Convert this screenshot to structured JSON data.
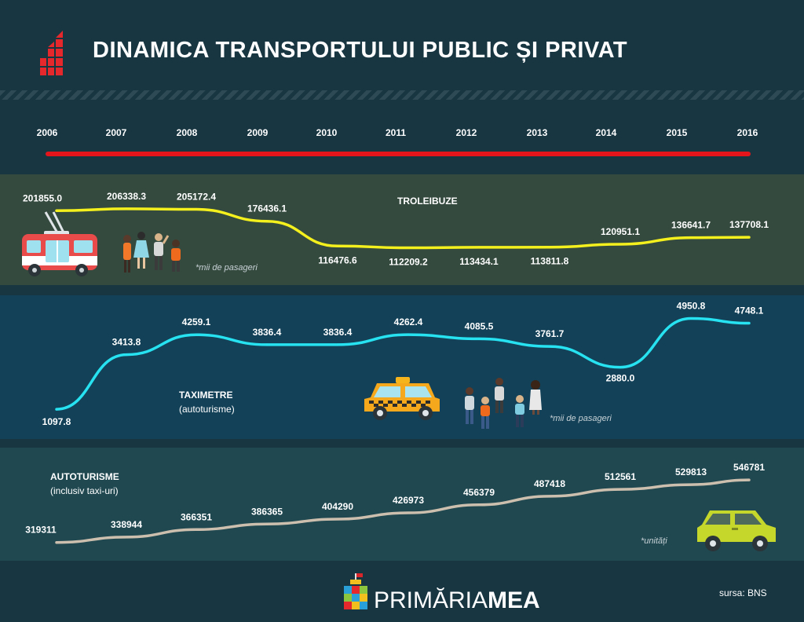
{
  "title": "DINAMICA TRANSPORTULUI PUBLIC ȘI PRIVAT",
  "years": [
    "2006",
    "2007",
    "2008",
    "2009",
    "2010",
    "2011",
    "2012",
    "2013",
    "2014",
    "2015",
    "2016"
  ],
  "colors": {
    "troleibuze": "#f4f01e",
    "taximetre": "#27e2f0",
    "autoturisme": "#cdbfae",
    "timeline": "#e4161b"
  },
  "chart_data": [
    {
      "type": "line",
      "x": [
        "2006",
        "2007",
        "2008",
        "2009",
        "2010",
        "2011",
        "2012",
        "2013",
        "2014",
        "2015",
        "2016"
      ],
      "series": [
        {
          "name": "TROLEIBUZE",
          "values": [
            201855.0,
            206338.3,
            205172.4,
            176436.1,
            116476.6,
            112209.2,
            113434.1,
            113811.8,
            120951.1,
            136641.7,
            137708.1
          ]
        }
      ],
      "labels": [
        "201855.0",
        "206338.3",
        "205172.4",
        "176436.1",
        "116476.6",
        "112209.2",
        "113434.1",
        "113811.8",
        "120951.1",
        "136641.7",
        "137708.1"
      ],
      "note": "*mii de pasageri"
    },
    {
      "type": "line",
      "x": [
        "2006",
        "2007",
        "2008",
        "2009",
        "2010",
        "2011",
        "2012",
        "2013",
        "2014",
        "2015",
        "2016"
      ],
      "series": [
        {
          "name": "TAXIMETRE",
          "values": [
            1097.8,
            3413.8,
            4259.1,
            3836.4,
            3836.4,
            4262.4,
            4085.5,
            3761.7,
            2880.0,
            4950.8,
            4748.1
          ]
        }
      ],
      "labels": [
        "1097.8",
        "3413.8",
        "4259.1",
        "3836.4",
        "3836.4",
        "4262.4",
        "4085.5",
        "3761.7",
        "2880.0",
        "4950.8",
        "4748.1"
      ],
      "subtitle": "(autoturisme)",
      "note": "*mii de pasageri"
    },
    {
      "type": "line",
      "x": [
        "2006",
        "2007",
        "2008",
        "2009",
        "2010",
        "2011",
        "2012",
        "2013",
        "2014",
        "2015",
        "2016"
      ],
      "series": [
        {
          "name": "AUTOTURISME",
          "values": [
            319311,
            338944,
            366351,
            386365,
            404290,
            426973,
            456379,
            487418,
            512561,
            529813,
            546781
          ]
        }
      ],
      "labels": [
        "319311",
        "338944",
        "366351",
        "386365",
        "404290",
        "426973",
        "456379",
        "487418",
        "512561",
        "529813",
        "546781"
      ],
      "subtitle": "(inclusiv taxi-uri)",
      "note": "*unități"
    }
  ],
  "footer": {
    "brand_light": "PRIMĂRIA",
    "brand_bold": "MEA",
    "source": "sursa: BNS"
  },
  "icons": [
    "bar-chart-logo-icon",
    "trolleybus-icon",
    "passengers-icon",
    "taxi-icon",
    "car-icon",
    "city-logo-icon"
  ]
}
